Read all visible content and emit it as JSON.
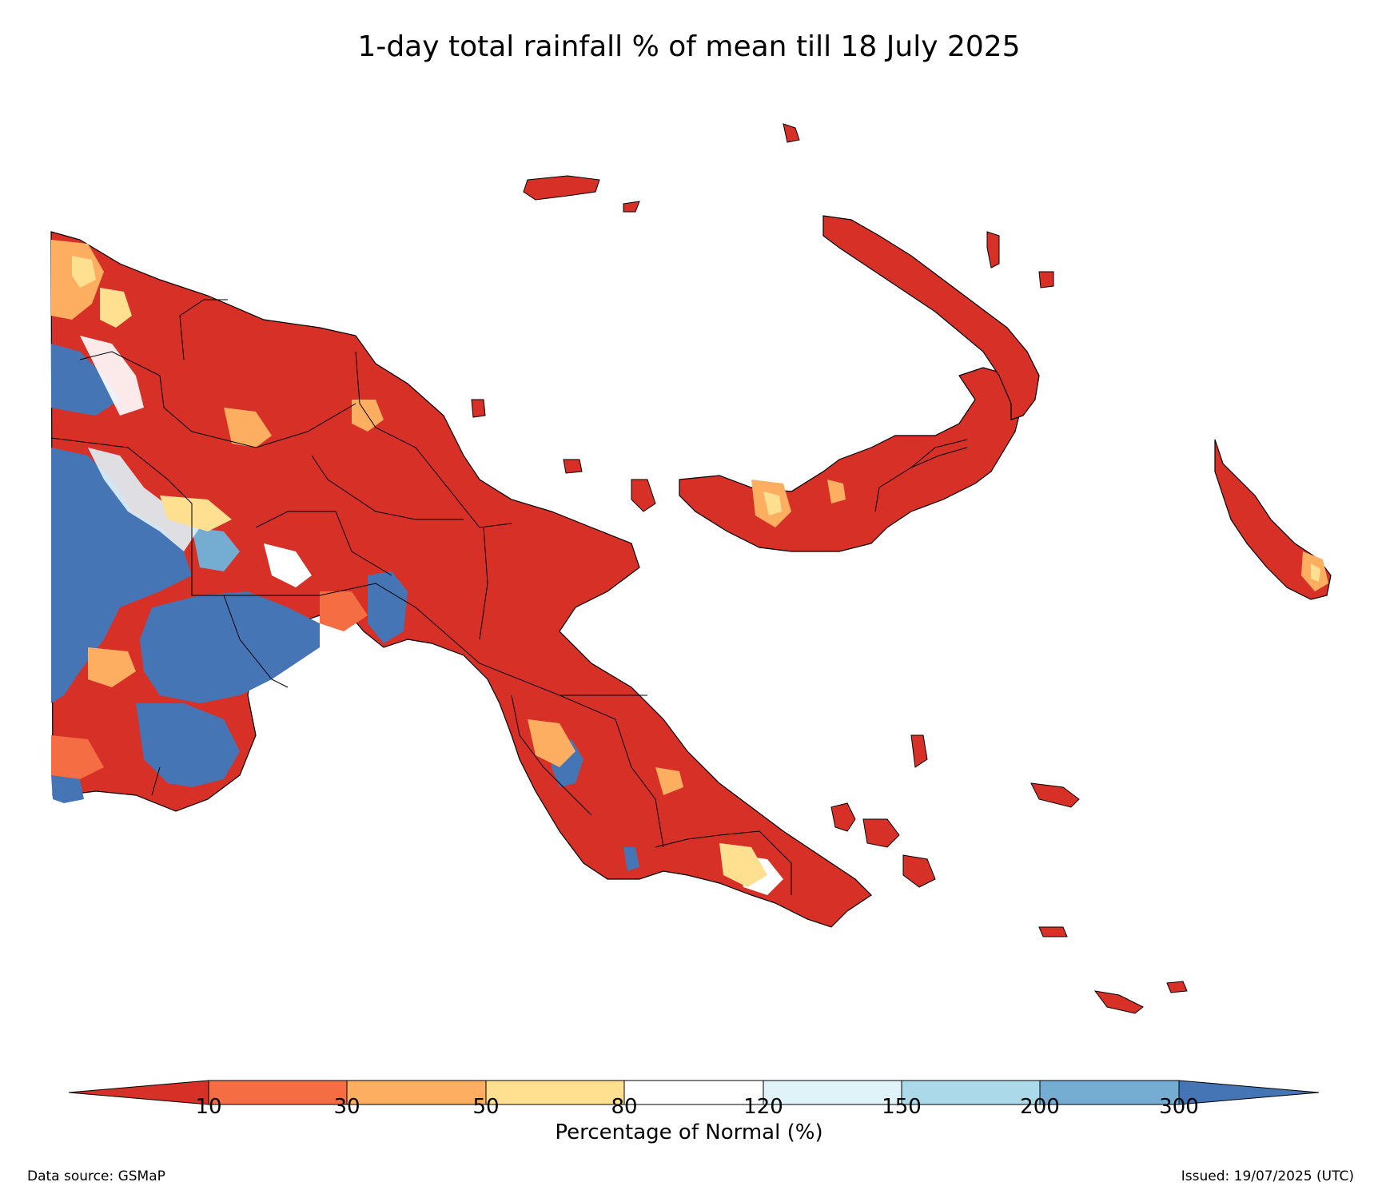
{
  "title": "1-day total rainfall % of mean till 18 July 2025",
  "colorbar": {
    "label": "Percentage of Normal (%)",
    "ticks": [
      "10",
      "30",
      "50",
      "80",
      "120",
      "150",
      "200",
      "300"
    ],
    "colors": [
      "#d73027",
      "#f46d43",
      "#fdae61",
      "#fee090",
      "#ffffff",
      "#e0f3f8",
      "#abd9e9",
      "#74add1",
      "#4575b4"
    ]
  },
  "footer": {
    "source": "Data source: GSMaP",
    "issued": "Issued: 19/07/2025 (UTC)"
  },
  "palette": {
    "dry": "#d73027",
    "below_30": "#f46d43",
    "below_50": "#fdae61",
    "below_80": "#fee090",
    "normal": "#ffffff",
    "above_120": "#e0f3f8",
    "above_150": "#abd9e9",
    "above_200": "#74add1",
    "above_300": "#4575b4"
  }
}
